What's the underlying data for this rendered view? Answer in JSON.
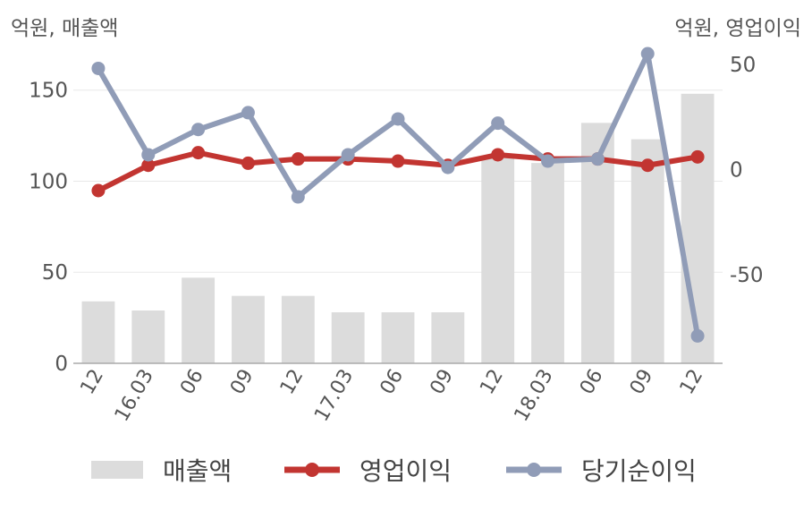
{
  "units": {
    "left": "억원, 매출액",
    "right": "억원, 영업이익"
  },
  "chart_data": {
    "type": "bar",
    "categories": [
      "12",
      "16.03",
      "06",
      "09",
      "12",
      "17.03",
      "06",
      "09",
      "12",
      "18.03",
      "06",
      "09",
      "12"
    ],
    "left_axis": {
      "ylim": [
        0,
        170
      ],
      "ticks": [
        0,
        50,
        100,
        150
      ]
    },
    "right_axis": {
      "ylim": [
        -92,
        55
      ],
      "ticks": [
        -50,
        0,
        50
      ]
    },
    "series": [
      {
        "name": "매출액",
        "kind": "bar",
        "axis": "left",
        "color": "#dcdcdc",
        "values": [
          34,
          29,
          47,
          37,
          37,
          28,
          28,
          28,
          114,
          110,
          132,
          123,
          148
        ]
      },
      {
        "name": "영업이익",
        "kind": "line",
        "axis": "right",
        "color": "#c23531",
        "values": [
          -10,
          2,
          8,
          3,
          5,
          5,
          4,
          2,
          7,
          5,
          5,
          2,
          6
        ]
      },
      {
        "name": "당기순이익",
        "kind": "line",
        "axis": "right",
        "color": "#909cb7",
        "values": [
          48,
          7,
          19,
          27,
          -13,
          7,
          24,
          1,
          22,
          4,
          5,
          55,
          -79
        ]
      }
    ],
    "grid": true
  },
  "legend": [
    {
      "label": "매출액"
    },
    {
      "label": "영업이익"
    },
    {
      "label": "당기순이익"
    }
  ]
}
